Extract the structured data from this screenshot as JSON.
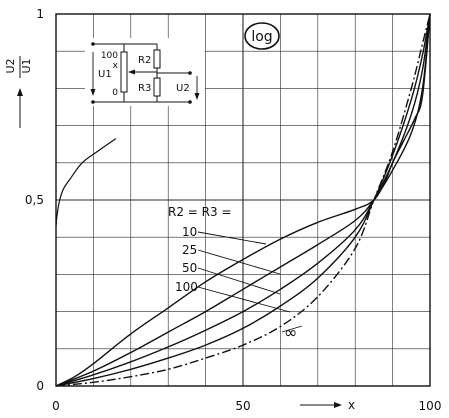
{
  "chart_data": {
    "type": "line",
    "xlim": [
      0,
      100
    ],
    "ylim": [
      0,
      1
    ],
    "grid": true,
    "x_ticks": [
      {
        "v": 0,
        "label": "0"
      },
      {
        "v": 50,
        "label": "50"
      },
      {
        "v": 100,
        "label": "100"
      }
    ],
    "y_ticks": [
      {
        "v": 0,
        "label": "0"
      },
      {
        "v": 0.5,
        "label": "0,5"
      },
      {
        "v": 1,
        "label": "1"
      }
    ],
    "xlabel": "x",
    "ylabel": {
      "num": "U2",
      "den": "U1"
    },
    "badge": "log",
    "legend_heading": "R2 = R3 =",
    "curve_labels": [
      "10",
      "25",
      "50",
      "100",
      "∞"
    ],
    "series": [
      {
        "name": "10",
        "style": "solid",
        "points": [
          [
            0,
            0
          ],
          [
            5,
            0.025
          ],
          [
            10,
            0.06
          ],
          [
            20,
            0.14
          ],
          [
            30,
            0.21
          ],
          [
            40,
            0.28
          ],
          [
            50,
            0.34
          ],
          [
            60,
            0.395
          ],
          [
            70,
            0.44
          ],
          [
            80,
            0.475
          ],
          [
            85,
            0.5
          ],
          [
            88,
            0.55
          ],
          [
            90,
            0.6
          ],
          [
            93,
            0.66
          ],
          [
            96,
            0.72
          ],
          [
            98,
            0.78
          ],
          [
            100,
            1
          ]
        ]
      },
      {
        "name": "25",
        "style": "solid",
        "points": [
          [
            0,
            0
          ],
          [
            10,
            0.04
          ],
          [
            20,
            0.09
          ],
          [
            30,
            0.145
          ],
          [
            40,
            0.2
          ],
          [
            50,
            0.26
          ],
          [
            60,
            0.32
          ],
          [
            70,
            0.38
          ],
          [
            80,
            0.445
          ],
          [
            85,
            0.5
          ],
          [
            90,
            0.58
          ],
          [
            95,
            0.68
          ],
          [
            98,
            0.8
          ],
          [
            100,
            1
          ]
        ]
      },
      {
        "name": "50",
        "style": "solid",
        "points": [
          [
            0,
            0
          ],
          [
            10,
            0.03
          ],
          [
            20,
            0.065
          ],
          [
            30,
            0.105
          ],
          [
            40,
            0.15
          ],
          [
            50,
            0.2
          ],
          [
            60,
            0.26
          ],
          [
            70,
            0.33
          ],
          [
            80,
            0.42
          ],
          [
            85,
            0.5
          ],
          [
            90,
            0.6
          ],
          [
            95,
            0.73
          ],
          [
            98,
            0.85
          ],
          [
            100,
            1
          ]
        ]
      },
      {
        "name": "100",
        "style": "solid",
        "points": [
          [
            0,
            0
          ],
          [
            10,
            0.02
          ],
          [
            20,
            0.045
          ],
          [
            30,
            0.075
          ],
          [
            40,
            0.11
          ],
          [
            50,
            0.155
          ],
          [
            60,
            0.215
          ],
          [
            70,
            0.29
          ],
          [
            80,
            0.4
          ],
          [
            85,
            0.5
          ],
          [
            90,
            0.62
          ],
          [
            95,
            0.77
          ],
          [
            98,
            0.89
          ],
          [
            100,
            1
          ]
        ]
      },
      {
        "name": "∞",
        "style": "dashdot",
        "points": [
          [
            0,
            0
          ],
          [
            10,
            0.01
          ],
          [
            20,
            0.025
          ],
          [
            30,
            0.045
          ],
          [
            40,
            0.075
          ],
          [
            50,
            0.11
          ],
          [
            60,
            0.16
          ],
          [
            70,
            0.24
          ],
          [
            80,
            0.37
          ],
          [
            85,
            0.5
          ],
          [
            90,
            0.63
          ],
          [
            95,
            0.8
          ],
          [
            98,
            0.92
          ],
          [
            100,
            1
          ]
        ]
      }
    ],
    "small_curve": {
      "style": "solid",
      "points": [
        [
          0,
          0.43
        ],
        [
          0.3,
          0.46
        ],
        [
          1,
          0.5
        ],
        [
          2,
          0.53
        ],
        [
          4,
          0.56
        ],
        [
          7,
          0.6
        ],
        [
          11,
          0.63
        ],
        [
          16,
          0.665
        ]
      ]
    },
    "inset": {
      "pot_top": "100",
      "pot_mid": "x",
      "pot_bottom": "0",
      "r2": "R2",
      "r3": "R3",
      "u1": "U1",
      "u2": "U2"
    },
    "colors": {
      "ink": "#111111",
      "grid": "#2a2a2a",
      "paper": "#ffffff"
    }
  }
}
